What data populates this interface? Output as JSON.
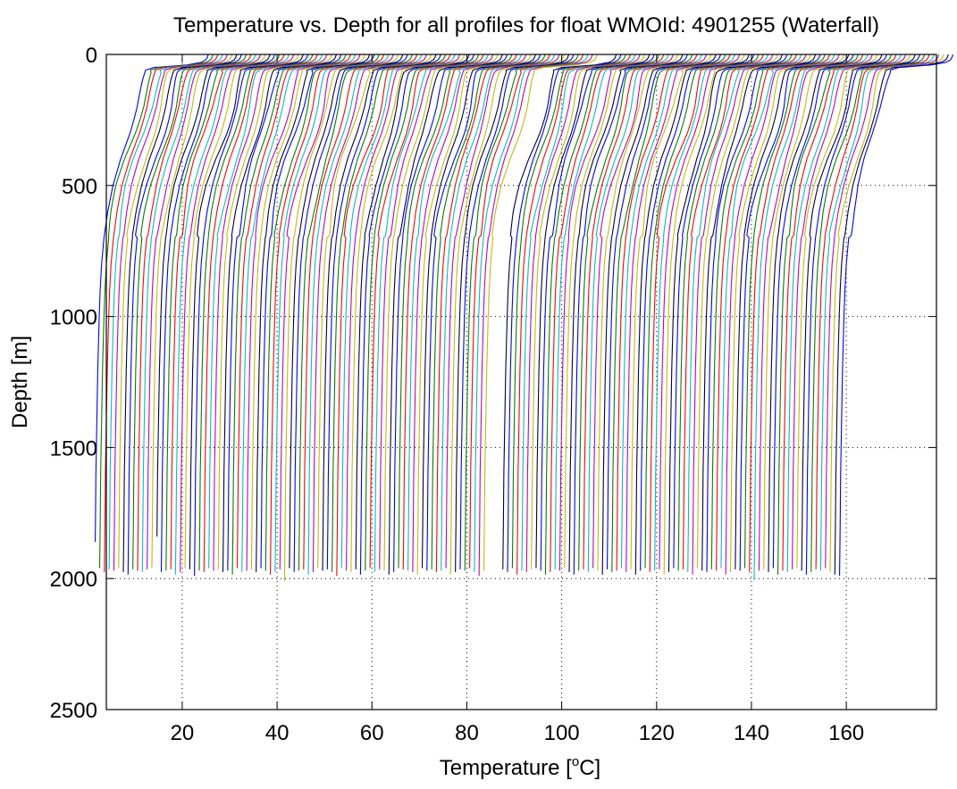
{
  "chart_data": {
    "type": "line",
    "title": "Temperature vs. Depth for all profiles for float WMOId: 4901255 (Waterfall)",
    "xlabel": {
      "pre": "Temperature [",
      "sup": "o",
      "post": "C]"
    },
    "ylabel": "Depth [m]",
    "xlim": [
      4,
      179
    ],
    "ylim": [
      0,
      2500
    ],
    "y_reversed": true,
    "grid": true,
    "grid_style": "dotted",
    "x_ticks": [
      20,
      40,
      60,
      80,
      100,
      120,
      140,
      160
    ],
    "y_ticks": [
      0,
      500,
      1000,
      1500,
      2000,
      2500
    ],
    "color_cycle": [
      "#0000ff",
      "#008000",
      "#ff0000",
      "#00bfbf",
      "#bf00bf",
      "#bfbf00",
      "#000040"
    ],
    "profile_count": 155,
    "profile_offset_per_index": 1,
    "profile_offset_gap_after_index": 82,
    "profile_offset_gap_value": 3,
    "template_profile": {
      "depth": [
        0,
        5,
        10,
        20,
        30,
        40,
        50,
        60,
        75,
        100,
        150,
        200,
        250,
        300,
        350,
        400,
        450,
        500,
        600,
        700,
        800,
        900,
        1000,
        1200,
        1400,
        1600,
        1800,
        1950
      ],
      "temperature_anomaly": [
        25.5,
        25.4,
        25.3,
        25,
        24,
        21,
        14,
        12.3,
        12,
        11.6,
        11,
        10.5,
        9.8,
        9,
        8,
        7,
        6.2,
        5.4,
        4.3,
        3.5,
        3,
        2.7,
        2.5,
        2.2,
        2,
        1.8,
        1.7,
        1.6
      ]
    },
    "profile_max_depths": [
      1860,
      1960,
      1975,
      1965,
      1970,
      1960,
      1975,
      1985,
      1965,
      1970,
      1975,
      1965,
      1960,
      1840,
      1975,
      1970,
      1965,
      1985,
      1975,
      1960,
      1965,
      1990,
      1970,
      1975,
      1960,
      1970,
      1965,
      1975,
      1970,
      1985,
      1960,
      1975,
      1970,
      1965,
      1975,
      1960,
      1970,
      1985,
      1975,
      1965,
      2010,
      1960,
      1975,
      1970,
      1965,
      1985,
      1975,
      1960,
      1970,
      1965,
      1975,
      1990,
      1960,
      1970,
      1975,
      1965,
      1985,
      1970,
      1960,
      1975,
      1965,
      1970,
      1985,
      1975,
      1960,
      1965,
      1970,
      1975,
      1985,
      1960,
      1970,
      1965,
      1975,
      1970,
      1960,
      1985,
      1975,
      1965,
      1970,
      1960,
      1975,
      1990,
      1970,
      1965,
      1975,
      1960,
      1985,
      1970,
      1975,
      1965,
      1960,
      1970,
      1985,
      1975,
      1965,
      1970,
      1960,
      1975,
      1985,
      1970,
      1965,
      1975,
      1960,
      1970,
      1985,
      1965,
      1975,
      1970,
      1960,
      1975,
      1965,
      1985,
      1970,
      1960,
      1975,
      1970,
      1965,
      1985,
      1975,
      1960,
      1970,
      1965,
      1975,
      1985,
      1960,
      1970,
      1975,
      1965,
      1970,
      1960,
      1985,
      1975,
      1965,
      1970,
      1960,
      1975,
      2005,
      1970,
      1965,
      1975,
      1960,
      1985,
      1970,
      1975,
      1965,
      1960,
      1970,
      1985,
      1975,
      1965,
      1970,
      1960,
      1975,
      1985,
      1990
    ]
  }
}
